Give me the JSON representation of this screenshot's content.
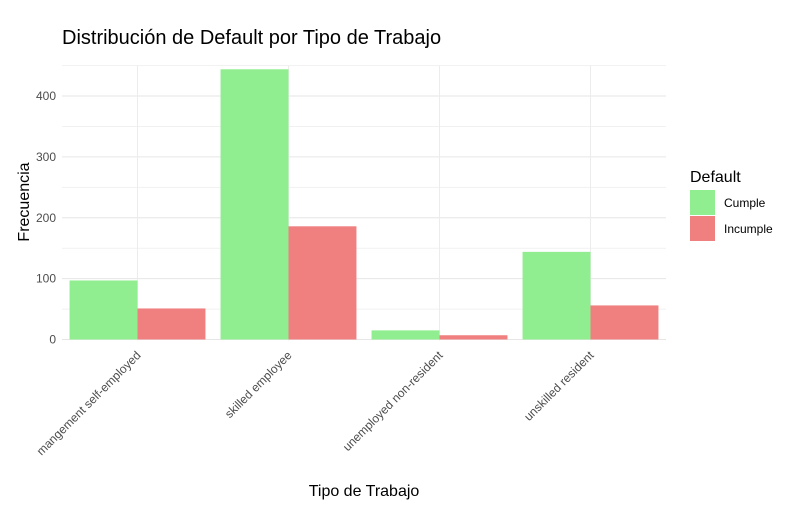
{
  "chart_data": {
    "type": "bar",
    "title": "Distribución de Default por Tipo de Trabajo",
    "xlabel": "Tipo de Trabajo",
    "ylabel": "Frecuencia",
    "categories": [
      "mangement self-employed",
      "skilled employee",
      "unemployed non-resident",
      "unskilled resident"
    ],
    "series": [
      {
        "name": "Cumple",
        "color": "#90EE90",
        "values": [
          97,
          444,
          15,
          144
        ]
      },
      {
        "name": "Incumple",
        "color": "#F08080",
        "values": [
          51,
          186,
          7,
          56
        ]
      }
    ],
    "ylim": [
      0,
      450
    ],
    "yticks": [
      0,
      100,
      200,
      300,
      400
    ],
    "grid": true,
    "legend": {
      "title": "Default",
      "position": "right"
    }
  }
}
